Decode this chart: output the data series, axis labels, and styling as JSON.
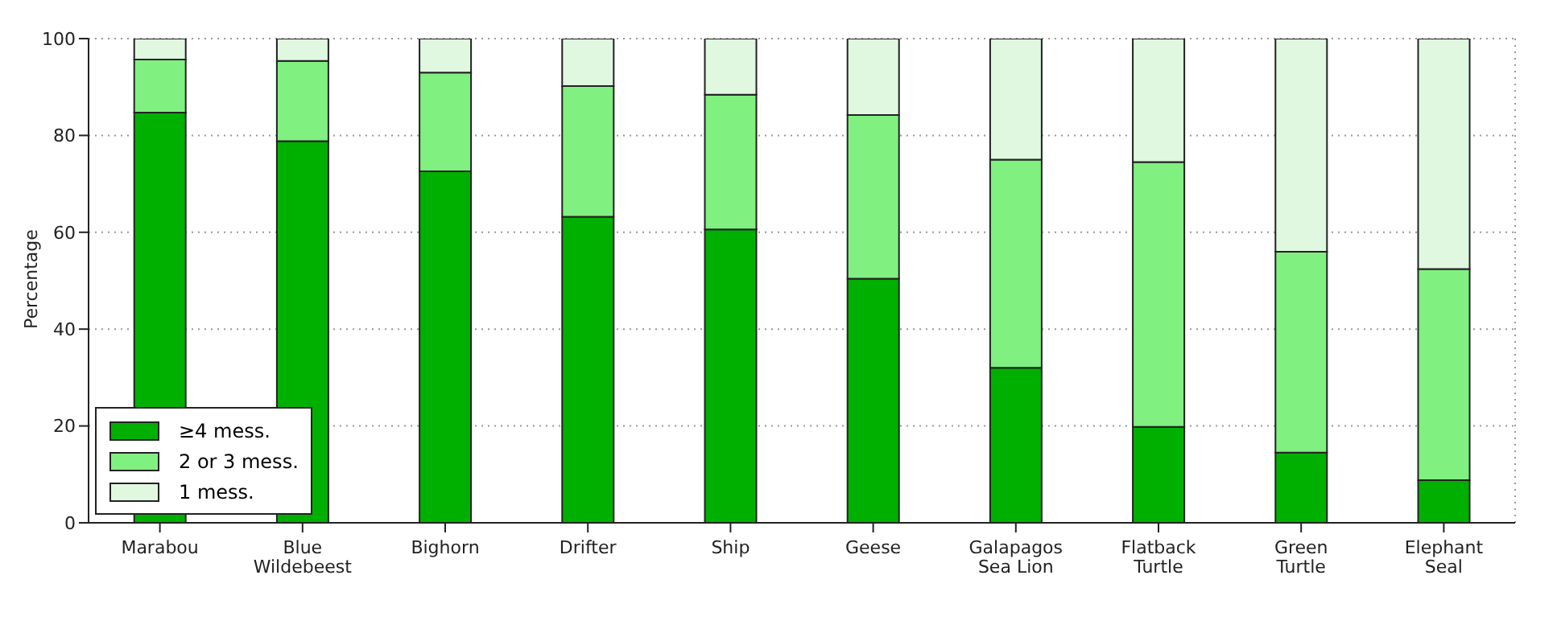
{
  "chart_data": {
    "type": "bar",
    "stacked": true,
    "ylabel": "Percentage",
    "categories": [
      "Marabou",
      "Blue\nWildebeest",
      "Bighorn",
      "Drifter",
      "Ship",
      "Geese",
      "Galapagos\nSea Lion",
      "Flatback\nTurtle",
      "Green\nTurtle",
      "Elephant\nSeal"
    ],
    "series": [
      {
        "name": "≥4 mess.",
        "color": "#00b000",
        "values": [
          84.7,
          78.8,
          72.6,
          63.2,
          60.6,
          50.4,
          32.0,
          19.8,
          14.5,
          8.8
        ]
      },
      {
        "name": "2 or 3 mess.",
        "color": "#80f080",
        "values": [
          11.0,
          16.6,
          20.4,
          27.0,
          27.8,
          33.8,
          43.0,
          54.7,
          41.5,
          43.6
        ]
      },
      {
        "name": "1 mess.",
        "color": "#e0f8e0",
        "values": [
          4.3,
          4.6,
          7.0,
          9.8,
          11.6,
          15.8,
          25.0,
          25.5,
          44.0,
          47.6
        ]
      }
    ],
    "ylim": [
      0,
      100
    ],
    "yticks": [
      0,
      20,
      40,
      60,
      80,
      100
    ],
    "grid": true,
    "legend": "bottom left"
  }
}
